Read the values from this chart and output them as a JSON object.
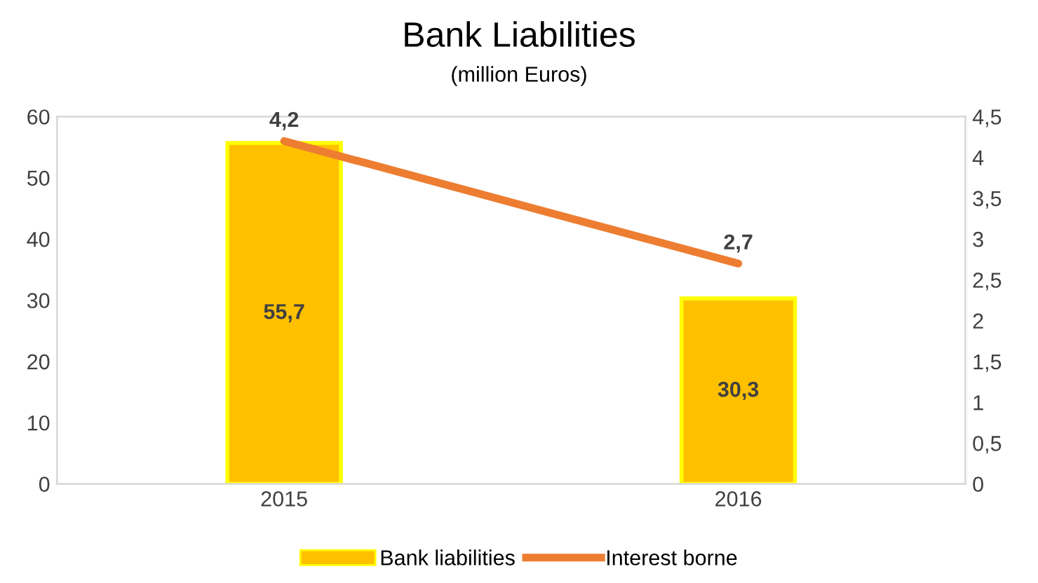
{
  "chart_data": {
    "type": "bar",
    "title": "Bank Liabilities",
    "subtitle": "(million Euros)",
    "categories": [
      "2015",
      "2016"
    ],
    "series": [
      {
        "name": "Bank liabilities",
        "color": "#ffc000",
        "values": [
          55.7,
          30.3
        ],
        "value_labels": [
          "55,7",
          "30,3"
        ]
      },
      {
        "name": "Interest borne",
        "type": "line",
        "axis": "y2",
        "color": "#ed7d31",
        "values": [
          4.2,
          2.7
        ],
        "value_labels": [
          "4,2",
          "2,7"
        ]
      }
    ],
    "ylim": [
      0,
      60
    ],
    "yticks": [
      0,
      10,
      20,
      30,
      40,
      50,
      60
    ],
    "y2lim": [
      0,
      4.5
    ],
    "y2ticks": [
      0,
      {
        "value": 0.5,
        "label": "0,5"
      },
      1,
      {
        "value": 1.5,
        "label": "1,5"
      },
      2,
      {
        "value": 2.5,
        "label": "2,5"
      },
      3,
      {
        "value": 3.5,
        "label": "3,5"
      },
      4,
      {
        "value": 4.5,
        "label": "4,5"
      }
    ],
    "grid": false,
    "legend": "bottom",
    "marker": "none",
    "line_style": "solid"
  }
}
